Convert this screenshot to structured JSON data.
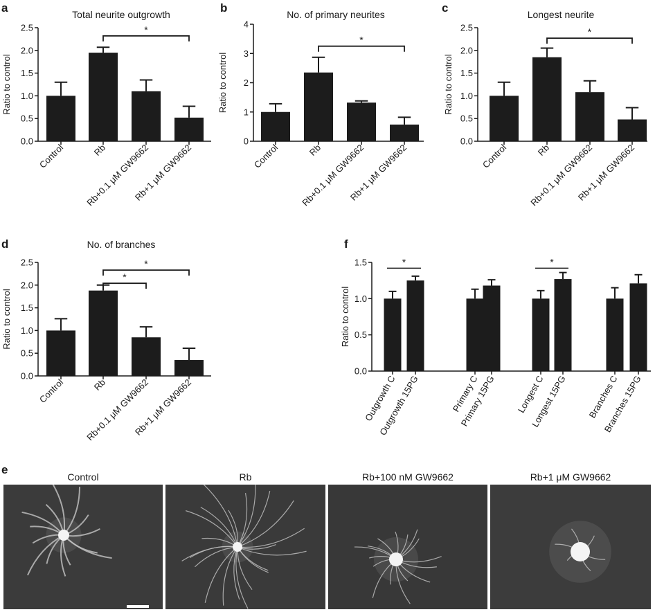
{
  "chart_data": [
    {
      "panel": "a",
      "type": "bar",
      "title": "Total neurite outgrowth",
      "ylabel": "Ratio to control",
      "ylim": [
        0,
        2.5
      ],
      "yticks": [
        0.0,
        0.5,
        1.0,
        1.5,
        2.0,
        2.5
      ],
      "ytick_labels": [
        "0.0",
        "0.5",
        "1.0",
        "1.5",
        "2.0",
        "2.5"
      ],
      "categories": [
        "Control",
        "Rb",
        "Rb+0.1 μM GW9662",
        "Rb+1 μM GW9662"
      ],
      "values": [
        1.0,
        1.95,
        1.1,
        0.52
      ],
      "errors": [
        0.3,
        0.12,
        0.25,
        0.25
      ],
      "significance": [
        {
          "from": 1,
          "to": 3,
          "label": "*",
          "y": 2.32
        }
      ]
    },
    {
      "panel": "b",
      "type": "bar",
      "title": "No. of primary neurites",
      "ylabel": "Ratio to control",
      "ylim": [
        0,
        4
      ],
      "yticks": [
        0,
        1,
        2,
        3,
        4
      ],
      "ytick_labels": [
        "0",
        "1",
        "2",
        "3",
        "4"
      ],
      "categories": [
        "Control",
        "Rb",
        "Rb+0.1 μM GW9662",
        "Rb+1 μM GW9662"
      ],
      "values": [
        1.0,
        2.35,
        1.32,
        0.57
      ],
      "errors": [
        0.28,
        0.52,
        0.06,
        0.25
      ],
      "significance": [
        {
          "from": 1,
          "to": 3,
          "label": "*",
          "y": 3.25
        }
      ]
    },
    {
      "panel": "c",
      "type": "bar",
      "title": "Longest neurite",
      "ylabel": "Ratio to control",
      "ylim": [
        0,
        2.5
      ],
      "yticks": [
        0.0,
        0.5,
        1.0,
        1.5,
        2.0,
        2.5
      ],
      "ytick_labels": [
        "0.0",
        "0.5",
        "1.0",
        "1.5",
        "2.0",
        "2.5"
      ],
      "categories": [
        "Control",
        "Rb",
        "Rb+0.1 μM GW9662",
        "Rb+1 μM GW9662"
      ],
      "values": [
        1.0,
        1.85,
        1.08,
        0.48
      ],
      "errors": [
        0.3,
        0.2,
        0.25,
        0.26
      ],
      "significance": [
        {
          "from": 1,
          "to": 3,
          "label": "*",
          "y": 2.27
        }
      ]
    },
    {
      "panel": "d",
      "type": "bar",
      "title": "No. of branches",
      "ylabel": "Ratio to control",
      "ylim": [
        0,
        2.5
      ],
      "yticks": [
        0.0,
        0.5,
        1.0,
        1.5,
        2.0,
        2.5
      ],
      "ytick_labels": [
        "0.0",
        "0.5",
        "1.0",
        "1.5",
        "2.0",
        "2.5"
      ],
      "categories": [
        "Control",
        "Rb",
        "Rb+0.1 μM GW9662",
        "Rb+1 μM GW9662"
      ],
      "values": [
        1.0,
        1.88,
        0.85,
        0.35
      ],
      "errors": [
        0.26,
        0.12,
        0.23,
        0.26
      ],
      "significance": [
        {
          "from": 1,
          "to": 2,
          "label": "*",
          "y": 2.04
        },
        {
          "from": 1,
          "to": 3,
          "label": "*",
          "y": 2.33
        }
      ]
    },
    {
      "panel": "f",
      "type": "bar",
      "title": "",
      "ylabel": "Ratio to control",
      "ylim": [
        0,
        1.5
      ],
      "yticks": [
        0.0,
        0.5,
        1.0,
        1.5
      ],
      "ytick_labels": [
        "0.0",
        "0.5",
        "1.0",
        "1.5"
      ],
      "categories": [
        "Outgrowth C",
        "Outgrowth 15PG",
        "Primary C",
        "Primary 15PG",
        "Longest C",
        "Longest 15PG",
        "Branches C",
        "Branches 15PG"
      ],
      "values": [
        1.0,
        1.25,
        1.0,
        1.18,
        1.0,
        1.27,
        1.0,
        1.21
      ],
      "errors": [
        0.1,
        0.06,
        0.13,
        0.08,
        0.11,
        0.09,
        0.15,
        0.12
      ],
      "significance": [
        {
          "from": 0,
          "to": 1,
          "label": "*",
          "y": 1.42,
          "style": "line"
        },
        {
          "from": 4,
          "to": 5,
          "label": "*",
          "y": 1.42,
          "style": "line"
        }
      ]
    }
  ],
  "panel_e": {
    "letter": "e",
    "photos": [
      {
        "title": "Control",
        "fill": "#3b3b3b"
      },
      {
        "title": "Rb",
        "fill": "#3a3a3a"
      },
      {
        "title": "Rb+100 nM GW9662",
        "fill": "#383838"
      },
      {
        "title": "Rb+1 μM GW9662",
        "fill": "#3c3c3c"
      }
    ]
  },
  "colors": {
    "bar": "#1c1c1c",
    "axis": "#1a1a1a",
    "text": "#1a1a1a"
  }
}
